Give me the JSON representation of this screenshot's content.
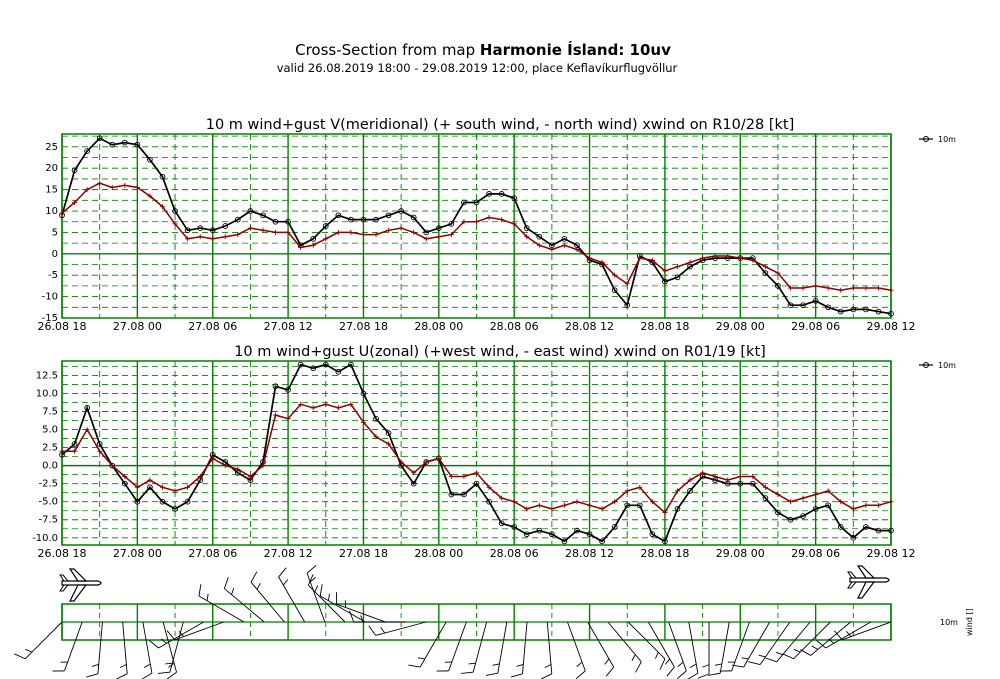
{
  "header": {
    "title_prefix": "Cross-Section from map ",
    "title_bold": "Harmonie Ísland: 10uv",
    "subtitle": "valid 26.08.2019 18:00 - 29.08.2019 12:00, place Keflavíkurflugvöllur"
  },
  "colors": {
    "grid": "#008000",
    "wind": "#000000",
    "gust": "#8b0000"
  },
  "chart_data": [
    {
      "type": "line",
      "title": "10 m wind+gust V(meridional) (+ south wind, - north wind) xwind on R10/28 [kt]",
      "legend_label": "10m",
      "legend_position": "top-right",
      "x_tick_labels": [
        "26.08 18",
        "27.08 00",
        "27.08 06",
        "27.08 12",
        "27.08 18",
        "28.08 00",
        "28.08 06",
        "28.08 12",
        "28.08 18",
        "29.08 00",
        "29.08 06",
        "29.08 12"
      ],
      "x_hours": [
        0,
        6,
        12,
        18,
        24,
        30,
        36,
        42,
        48,
        54,
        60,
        66
      ],
      "xlim": [
        0,
        66
      ],
      "y_ticks": [
        -15,
        -10,
        -5,
        0,
        5,
        10,
        15,
        20,
        25
      ],
      "ylim": [
        -15,
        28
      ],
      "grid": true,
      "series": [
        {
          "role": "wind",
          "hours": [
            0,
            1,
            2,
            3,
            4,
            5,
            6,
            7,
            8,
            9,
            10,
            11,
            12,
            13,
            14,
            15,
            16,
            17,
            18,
            19,
            20,
            21,
            22,
            23,
            24,
            25,
            26,
            27,
            28,
            29,
            30,
            31,
            32,
            33,
            34,
            35,
            36,
            37,
            38,
            39,
            40,
            41,
            42,
            43,
            44,
            45,
            46,
            47,
            48,
            49,
            50,
            51,
            52,
            53,
            54,
            55,
            56,
            57,
            58,
            59,
            60,
            61,
            62,
            63,
            64,
            65,
            66
          ],
          "values": [
            9,
            19.5,
            24,
            27,
            25.5,
            26,
            25.5,
            22,
            18,
            10,
            5.5,
            6,
            5.5,
            6.5,
            8,
            10,
            9,
            7.5,
            7.5,
            2,
            3.5,
            6.5,
            9,
            8,
            8,
            8,
            9,
            10,
            8.5,
            5,
            6,
            7,
            12,
            12,
            14,
            14,
            13,
            6,
            4,
            2,
            3.5,
            2,
            -1.5,
            -2.5,
            -8.5,
            -12,
            -0.5,
            -2,
            -6.5,
            -5.5,
            -3,
            -1.5,
            -1,
            -1,
            -1,
            -1,
            -4.5,
            -7.5,
            -12,
            -12,
            -11,
            -12.5,
            -13.5,
            -13,
            -13,
            -13.5,
            -14
          ]
        },
        {
          "role": "gust",
          "hours": [
            0,
            1,
            2,
            3,
            4,
            5,
            6,
            7,
            8,
            9,
            10,
            11,
            12,
            13,
            14,
            15,
            16,
            17,
            18,
            19,
            20,
            21,
            22,
            23,
            24,
            25,
            26,
            27,
            28,
            29,
            30,
            31,
            32,
            33,
            34,
            35,
            36,
            37,
            38,
            39,
            40,
            41,
            42,
            43,
            44,
            45,
            46,
            47,
            48,
            49,
            50,
            51,
            52,
            53,
            54,
            55,
            56,
            57,
            58,
            59,
            60,
            61,
            62,
            63,
            64,
            65,
            66
          ],
          "values": [
            9.5,
            12,
            15,
            16.5,
            15.5,
            16,
            15.5,
            13.5,
            11,
            7,
            3.5,
            4,
            3.5,
            4,
            4.5,
            6,
            5.5,
            5,
            5,
            1.5,
            2,
            3.5,
            5,
            5,
            4.5,
            4.5,
            5.5,
            6,
            5,
            3.5,
            4,
            4.5,
            7.5,
            7.5,
            8.5,
            8,
            7,
            4,
            2,
            1,
            2,
            1,
            -1,
            -2,
            -5,
            -7,
            -1,
            -1.5,
            -4,
            -3,
            -2,
            -1,
            -0.5,
            -0.5,
            -1,
            -1.5,
            -3,
            -4.5,
            -8,
            -8,
            -7.5,
            -8,
            -8.5,
            -8,
            -8,
            -8,
            -8.5
          ]
        }
      ]
    },
    {
      "type": "line",
      "title": "10 m wind+gust U(zonal) (+west wind, - east wind) xwind on R01/19 [kt]",
      "legend_label": "10m",
      "legend_position": "top-right",
      "x_tick_labels": [
        "26.08 18",
        "27.08 00",
        "27.08 06",
        "27.08 12",
        "27.08 18",
        "28.08 00",
        "28.08 06",
        "28.08 12",
        "28.08 18",
        "29.08 00",
        "29.08 06",
        "29.08 12"
      ],
      "x_hours": [
        0,
        6,
        12,
        18,
        24,
        30,
        36,
        42,
        48,
        54,
        60,
        66
      ],
      "xlim": [
        0,
        66
      ],
      "y_ticks": [
        -10.0,
        -7.5,
        -5.0,
        -2.5,
        0.0,
        2.5,
        5.0,
        7.5,
        10.0,
        12.5
      ],
      "y_tick_labels": [
        "-10.0",
        "-7.5",
        "-5.0",
        "-2.5",
        "0.0",
        "2.5",
        "5.0",
        "7.5",
        "10.0",
        "12.5"
      ],
      "ylim": [
        -11,
        14.5
      ],
      "grid": true,
      "series": [
        {
          "role": "wind",
          "hours": [
            0,
            1,
            2,
            3,
            4,
            5,
            6,
            7,
            8,
            9,
            10,
            11,
            12,
            13,
            14,
            15,
            16,
            17,
            18,
            19,
            20,
            21,
            22,
            23,
            24,
            25,
            26,
            27,
            28,
            29,
            30,
            31,
            32,
            33,
            34,
            35,
            36,
            37,
            38,
            39,
            40,
            41,
            42,
            43,
            44,
            45,
            46,
            47,
            48,
            49,
            50,
            51,
            52,
            53,
            54,
            55,
            56,
            57,
            58,
            59,
            60,
            61,
            62,
            63,
            64,
            65,
            66
          ],
          "values": [
            1.5,
            3,
            8,
            3,
            0,
            -2.5,
            -5,
            -3,
            -5,
            -6,
            -5,
            -2,
            1.5,
            0.5,
            -1,
            -2,
            0.5,
            11,
            10.5,
            14,
            13.5,
            14,
            13,
            14,
            10,
            6.5,
            4.5,
            0,
            -2.5,
            0.5,
            1,
            -4,
            -4,
            -2.5,
            -5,
            -8,
            -8.5,
            -9.5,
            -9,
            -9.5,
            -10.5,
            -9,
            -9.5,
            -10.5,
            -8.5,
            -5.5,
            -5.5,
            -9.5,
            -10.5,
            -6,
            -3.5,
            -1.5,
            -2,
            -2.5,
            -2.5,
            -2.5,
            -4.5,
            -6.5,
            -7.5,
            -7,
            -6,
            -5.5,
            -8.5,
            -10,
            -8.5,
            -9,
            -9
          ]
        },
        {
          "role": "gust",
          "hours": [
            0,
            1,
            2,
            3,
            4,
            5,
            6,
            7,
            8,
            9,
            10,
            11,
            12,
            13,
            14,
            15,
            16,
            17,
            18,
            19,
            20,
            21,
            22,
            23,
            24,
            25,
            26,
            27,
            28,
            29,
            30,
            31,
            32,
            33,
            34,
            35,
            36,
            37,
            38,
            39,
            40,
            41,
            42,
            43,
            44,
            45,
            46,
            47,
            48,
            49,
            50,
            51,
            52,
            53,
            54,
            55,
            56,
            57,
            58,
            59,
            60,
            61,
            62,
            63,
            64,
            65,
            66
          ],
          "values": [
            2,
            2,
            5,
            2,
            0,
            -1.5,
            -3,
            -2,
            -3,
            -3.5,
            -3,
            -1.5,
            1,
            0,
            -0.5,
            -1.5,
            0,
            7,
            6.5,
            8.5,
            8,
            8.5,
            8,
            8.5,
            6,
            4,
            3,
            0.5,
            -1,
            0.5,
            1,
            -1.5,
            -1.5,
            -1,
            -3,
            -4.5,
            -5,
            -6,
            -5.5,
            -6,
            -5.5,
            -5,
            -5.5,
            -6,
            -5,
            -3.5,
            -3,
            -5,
            -6.5,
            -3.5,
            -2,
            -1,
            -1.5,
            -2,
            -1.5,
            -1.5,
            -3,
            -4,
            -5,
            -4.5,
            -4,
            -3.5,
            -5,
            -6,
            -5.5,
            -5.5,
            -5
          ]
        }
      ]
    }
  ],
  "barbs": {
    "label": "10m",
    "axis_label": "wind",
    "axis_label_suffix": "[]",
    "directions_deg": [
      225,
      200,
      185,
      175,
      170,
      165,
      195,
      240,
      250,
      300,
      310,
      320,
      330,
      340,
      315,
      300,
      290,
      270,
      255,
      210,
      200,
      195,
      190,
      185,
      175,
      160,
      150,
      140,
      135,
      150,
      160,
      170,
      180,
      190,
      200,
      210,
      215,
      220,
      225,
      230,
      240,
      250
    ]
  },
  "icons": {
    "left": "airplane-icon",
    "right": "airplane-icon"
  }
}
